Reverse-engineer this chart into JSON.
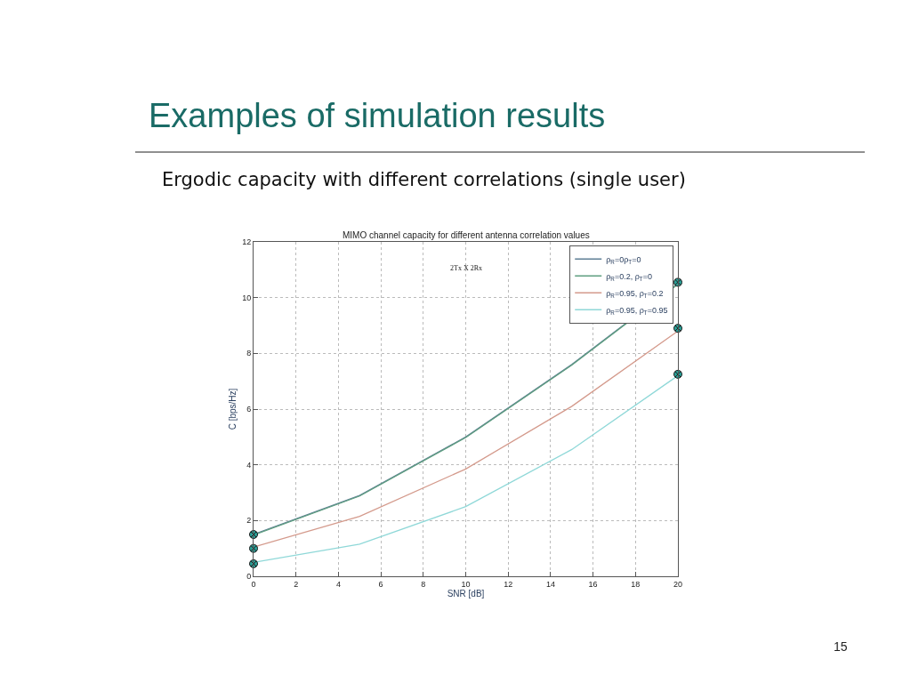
{
  "chart_data": {
    "type": "line",
    "title": "Examples of simulation results",
    "subtitle": "Ergodic capacity with different correlations (single user)",
    "xlabel": "SNR [dB]",
    "ylabel": "C [bps/Hz]",
    "annotations": [
      "MIMO channel capacity for different antenna correlation values",
      "2Tx X 2Rx",
      "15"
    ],
    "x": [
      0,
      5,
      10,
      15,
      20
    ],
    "series": [
      {
        "name": "ρ$_{R}$=0ρ$_{T}$=0",
        "color": "#5f7f95",
        "values": [
          1.5,
          2.9,
          5.0,
          7.6,
          10.5
        ]
      },
      {
        "name": "ρ$_{R}$=0.2, ρ$_{T}$=0",
        "color": "#5f9f80",
        "values": [
          1.48,
          2.88,
          4.98,
          7.58,
          10.48
        ]
      },
      {
        "name": "ρ$_{R}$=0.95, ρ$_{T}$=0.2",
        "color": "#d49a8c",
        "values": [
          1.05,
          2.15,
          3.85,
          6.1,
          8.8
        ]
      },
      {
        "name": "ρ$_{R}$=0.95, ρ$_{T}$=0.95",
        "color": "#8fd8d8",
        "values": [
          0.5,
          1.15,
          2.5,
          4.55,
          7.2
        ]
      },
      {
        "type": "scatter",
        "marker": "cross",
        "color": "#2aa198",
        "values": [
          1.5,
          null,
          null,
          null,
          10.55
        ]
      },
      {
        "type": "scatter",
        "marker": "cross",
        "color": "#2aa198",
        "values": [
          1.0,
          null,
          null,
          null,
          8.9
        ]
      },
      {
        "type": "scatter",
        "marker": "cross",
        "color": "#2aa198",
        "values": [
          0.45,
          null,
          null,
          null,
          7.25
        ]
      }
    ],
    "xlim": [
      0,
      20
    ],
    "xticks": [
      0,
      2,
      4,
      6,
      8,
      10,
      12,
      14,
      16,
      18,
      20
    ],
    "ylim": [
      0,
      12
    ],
    "yticks": [
      0,
      2,
      4,
      6,
      8,
      10,
      12
    ],
    "grid": true,
    "legend": "top right",
    "marker": "none",
    "line_style": "solid"
  }
}
